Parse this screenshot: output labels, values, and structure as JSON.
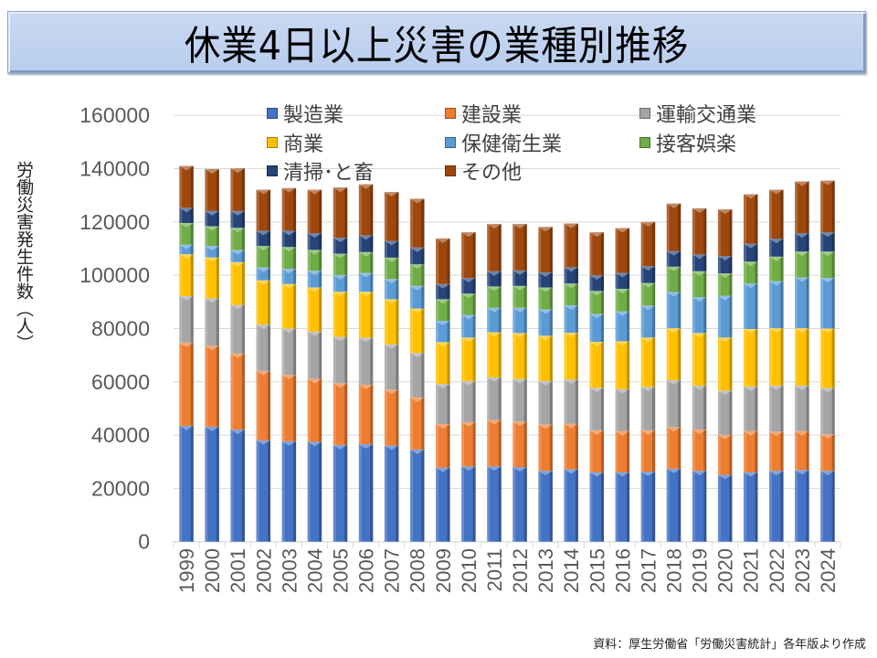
{
  "title": "休業4日以上災害の業種別推移",
  "source_note": "資料：厚生労働省「労働災害統計」各年版より作成",
  "chart_data": {
    "type": "bar",
    "stacked": true,
    "title": "休業4日以上災害の業種別推移",
    "xlabel": "",
    "ylabel": "労働災害発生件数（人）",
    "ylim": [
      0,
      160000
    ],
    "yticks": [
      "0",
      "20000",
      "40000",
      "60000",
      "80000",
      "100000",
      "120000",
      "140000",
      "160000"
    ],
    "grid": true,
    "legend_position": "top",
    "categories": [
      "1999",
      "2000",
      "2001",
      "2002",
      "2003",
      "2004",
      "2005",
      "2006",
      "2007",
      "2008",
      "2009",
      "2010",
      "2011",
      "2012",
      "2013",
      "2014",
      "2015",
      "2016",
      "2017",
      "2018",
      "2019",
      "2020",
      "2021",
      "2022",
      "2023",
      "2024"
    ],
    "series": [
      {
        "name": "製造業",
        "color": "#4472c4",
        "values": [
          43500,
          43200,
          42100,
          38100,
          37700,
          37500,
          36300,
          36600,
          36100,
          34600,
          27800,
          28300,
          28300,
          28000,
          26600,
          27200,
          26100,
          26100,
          26300,
          27400,
          26600,
          25100,
          26100,
          26600,
          26900,
          26600
        ]
      },
      {
        "name": "建設業",
        "color": "#ed7d31",
        "values": [
          31200,
          30300,
          28500,
          26000,
          24900,
          23600,
          23200,
          22300,
          21000,
          19500,
          16300,
          16600,
          17400,
          17100,
          17400,
          17100,
          15700,
          15400,
          15500,
          15600,
          15500,
          15000,
          15400,
          14700,
          14600,
          13700
        ]
      },
      {
        "name": "運輸交通業",
        "color": "#a5a5a5",
        "values": [
          17500,
          17900,
          18300,
          17400,
          17400,
          17800,
          17400,
          17700,
          17000,
          16800,
          15100,
          15400,
          16000,
          16000,
          16300,
          16600,
          16000,
          15800,
          16300,
          17600,
          16500,
          16600,
          16800,
          17300,
          17100,
          17400
        ]
      },
      {
        "name": "商業",
        "color": "#ffc000",
        "values": [
          15700,
          15300,
          16000,
          16600,
          16700,
          16500,
          16900,
          17200,
          16900,
          16600,
          15700,
          16300,
          16900,
          17200,
          17000,
          17500,
          17200,
          17900,
          18500,
          19500,
          19700,
          19900,
          21500,
          21500,
          21500,
          22300
        ]
      },
      {
        "name": "保健衛生業",
        "color": "#5b9bd5",
        "values": [
          3600,
          4300,
          4600,
          4800,
          5700,
          6300,
          6300,
          7100,
          7600,
          8500,
          8000,
          8500,
          9200,
          9500,
          9900,
          10300,
          10500,
          11200,
          12000,
          13600,
          13500,
          15700,
          17100,
          17700,
          19100,
          19000
        ]
      },
      {
        "name": "接客娯楽",
        "color": "#70ad47",
        "values": [
          8100,
          7400,
          8300,
          8100,
          8200,
          7800,
          8000,
          7800,
          8000,
          8100,
          8100,
          8000,
          8000,
          8200,
          8200,
          8200,
          8600,
          8500,
          8500,
          9500,
          9700,
          8400,
          8200,
          9200,
          9700,
          9900
        ]
      },
      {
        "name": "清掃・と畜",
        "color": "#264478",
        "values": [
          5700,
          5700,
          6300,
          5700,
          6100,
          6300,
          6000,
          6300,
          6300,
          6300,
          5700,
          5900,
          5700,
          5800,
          5700,
          6100,
          5900,
          6000,
          6300,
          5900,
          6300,
          6500,
          6700,
          6700,
          6900,
          7200
        ]
      },
      {
        "name": "その他",
        "color": "#9e480e",
        "values": [
          15700,
          15700,
          16000,
          15400,
          16000,
          16300,
          18800,
          19100,
          18300,
          18300,
          17100,
          17100,
          17700,
          17400,
          17000,
          16400,
          16100,
          16800,
          16600,
          17800,
          17300,
          17500,
          18600,
          18400,
          19400,
          19400
        ]
      }
    ]
  },
  "legend_labels": [
    "製造業",
    "建設業",
    "運輸交通業",
    "商業",
    "保健衛生業",
    "接客娯楽",
    "清掃･と畜",
    "その他"
  ]
}
